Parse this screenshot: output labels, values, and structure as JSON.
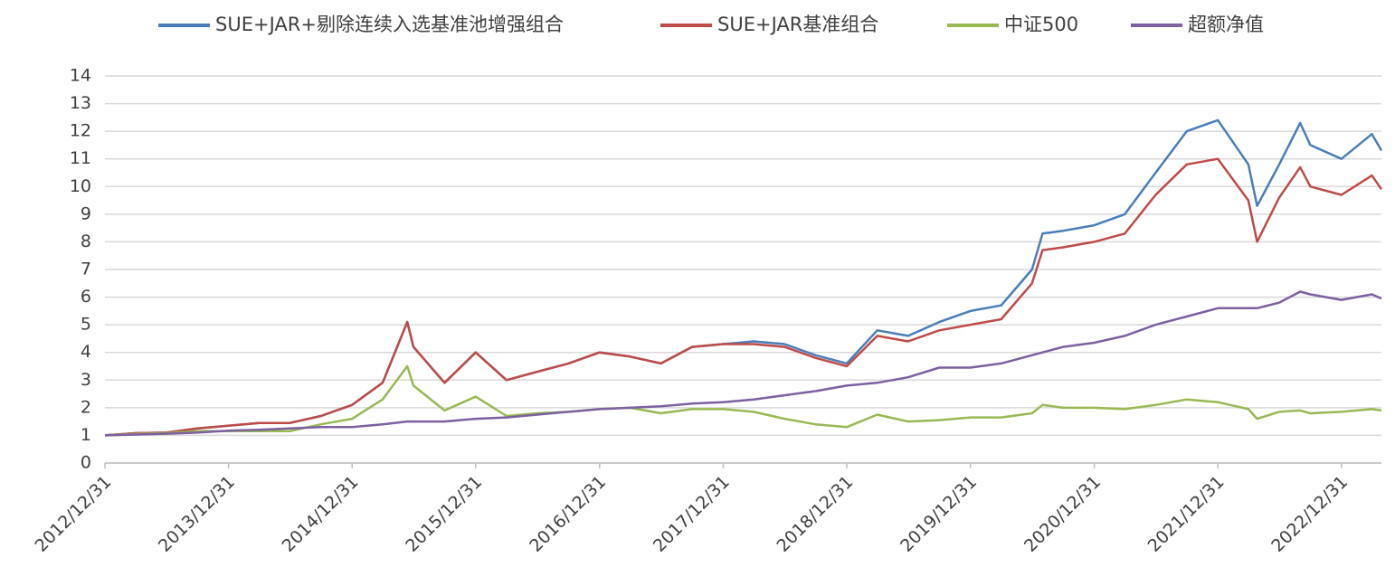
{
  "chart_data": {
    "type": "line",
    "x": [
      "2012/12/31",
      "2013/03/31",
      "2013/06/30",
      "2013/09/30",
      "2013/12/31",
      "2014/03/31",
      "2014/06/30",
      "2014/09/30",
      "2014/12/31",
      "2015/03/31",
      "2015/06/12",
      "2015/06/30",
      "2015/09/30",
      "2015/12/31",
      "2016/03/31",
      "2016/06/30",
      "2016/09/30",
      "2016/12/31",
      "2017/03/31",
      "2017/06/30",
      "2017/09/30",
      "2017/12/31",
      "2018/03/31",
      "2018/06/30",
      "2018/09/30",
      "2018/12/31",
      "2019/03/31",
      "2019/06/30",
      "2019/09/30",
      "2019/12/31",
      "2020/03/31",
      "2020/06/30",
      "2020/07/31",
      "2020/09/30",
      "2020/12/31",
      "2021/03/31",
      "2021/06/30",
      "2021/09/30",
      "2021/12/31",
      "2022/03/31",
      "2022/04/26",
      "2022/06/30",
      "2022/08/31",
      "2022/09/30",
      "2022/12/31",
      "2023/03/31",
      "2023/04/28"
    ],
    "series": [
      {
        "name": "SUE+JAR+剔除连续入选基准池增强组合",
        "color": "#4a7ebb",
        "values": [
          1,
          1.08,
          1.1,
          1.25,
          1.35,
          1.45,
          1.45,
          1.7,
          2.1,
          2.9,
          5.1,
          4.2,
          2.9,
          4.0,
          3.0,
          3.3,
          3.6,
          4.0,
          3.85,
          3.6,
          4.2,
          4.3,
          4.4,
          4.3,
          3.9,
          3.6,
          4.8,
          4.6,
          5.1,
          5.5,
          5.7,
          7.0,
          8.3,
          8.4,
          8.6,
          9.0,
          10.5,
          12.0,
          12.4,
          10.8,
          9.3,
          10.8,
          12.3,
          11.5,
          11.0,
          11.9,
          11.3
        ]
      },
      {
        "name": "SUE+JAR基准组合",
        "color": "#be4b48",
        "values": [
          1,
          1.08,
          1.1,
          1.25,
          1.35,
          1.45,
          1.45,
          1.7,
          2.1,
          2.9,
          5.1,
          4.2,
          2.9,
          4.0,
          3.0,
          3.3,
          3.6,
          4.0,
          3.85,
          3.6,
          4.2,
          4.3,
          4.3,
          4.2,
          3.8,
          3.5,
          4.6,
          4.4,
          4.8,
          5.0,
          5.2,
          6.5,
          7.7,
          7.8,
          8.0,
          8.3,
          9.7,
          10.8,
          11.0,
          9.5,
          8.0,
          9.6,
          10.7,
          10.0,
          9.7,
          10.4,
          9.9
        ]
      },
      {
        "name": "中证500",
        "color": "#98b954",
        "values": [
          1,
          1.05,
          1.08,
          1.15,
          1.15,
          1.15,
          1.15,
          1.4,
          1.6,
          2.3,
          3.5,
          2.8,
          1.9,
          2.4,
          1.7,
          1.8,
          1.85,
          1.95,
          2.0,
          1.8,
          1.95,
          1.95,
          1.85,
          1.6,
          1.4,
          1.3,
          1.75,
          1.5,
          1.55,
          1.65,
          1.65,
          1.8,
          2.1,
          2.0,
          2.0,
          1.95,
          2.1,
          2.3,
          2.2,
          1.95,
          1.6,
          1.85,
          1.9,
          1.8,
          1.85,
          1.95,
          1.9
        ]
      },
      {
        "name": "超额净值",
        "color": "#7d60a0",
        "values": [
          1,
          1.03,
          1.06,
          1.1,
          1.17,
          1.2,
          1.25,
          1.3,
          1.3,
          1.4,
          1.5,
          1.5,
          1.5,
          1.6,
          1.65,
          1.75,
          1.85,
          1.95,
          2.0,
          2.05,
          2.15,
          2.2,
          2.3,
          2.45,
          2.6,
          2.8,
          2.9,
          3.1,
          3.45,
          3.45,
          3.6,
          3.9,
          4.0,
          4.2,
          4.35,
          4.6,
          5.0,
          5.3,
          5.6,
          5.6,
          5.6,
          5.8,
          6.2,
          6.1,
          5.9,
          6.1,
          5.95
        ]
      }
    ],
    "xlim": [
      "2012/12/31",
      "2023/04/28"
    ],
    "xticks": [
      "2012/12/31",
      "2013/12/31",
      "2014/12/31",
      "2015/12/31",
      "2016/12/31",
      "2017/12/31",
      "2018/12/31",
      "2019/12/31",
      "2020/12/31",
      "2021/12/31",
      "2022/12/31"
    ],
    "ylim": [
      0,
      14
    ],
    "yticks": [
      0,
      1,
      2,
      3,
      4,
      5,
      6,
      7,
      8,
      9,
      10,
      11,
      12,
      13,
      14
    ],
    "grid": true,
    "legend": "top"
  }
}
